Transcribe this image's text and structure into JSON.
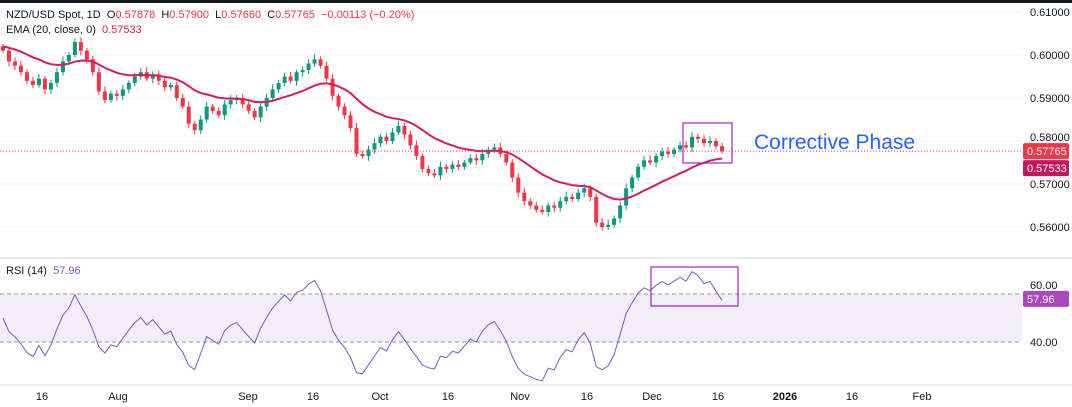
{
  "header": {
    "symbol": "NZD/USD Spot, 1D",
    "open_label": "O",
    "open": "0.57878",
    "high_label": "H",
    "high": "0.57900",
    "low_label": "L",
    "low": "0.57660",
    "close_label": "C",
    "close": "0.57765",
    "change": "−0.00113 (−0.20%)",
    "ema_label": "EMA (20, close, 0)",
    "ema_value": "0.57533",
    "rsi_label": "RSI (14)",
    "rsi_value": "57.96"
  },
  "annotation": "Corrective Phase",
  "colors": {
    "up": "#089981",
    "down": "#f23645",
    "ema": "#d81b60",
    "rsi": "#7e57c2",
    "annotation": "#2962ff",
    "box": "#9c27b0"
  },
  "chart_data": {
    "type": "candlestick",
    "title": "NZD/USD Spot, 1D",
    "price_axis": {
      "ticks": [
        "0.61000",
        "0.60000",
        "0.59000",
        "0.58000",
        "0.57000",
        "0.56000"
      ],
      "range": [
        0.5535,
        0.6125
      ]
    },
    "price_labels": {
      "last": "0.57765",
      "ema": "0.57533"
    },
    "rsi_axis": {
      "ticks": [
        "60.00",
        "40.00"
      ],
      "band": [
        40,
        60
      ],
      "label": "57.96"
    },
    "time_axis": [
      "16",
      "Aug",
      "Sep",
      "16",
      "Oct",
      "16",
      "Nov",
      "16",
      "Dec",
      "16",
      "2026",
      "16",
      "Feb"
    ],
    "ema_period": 20,
    "rsi_period": 14,
    "closes": [
      0.601,
      0.5985,
      0.5975,
      0.596,
      0.594,
      0.593,
      0.5945,
      0.592,
      0.5935,
      0.596,
      0.5985,
      0.6,
      0.603,
      0.601,
      0.599,
      0.596,
      0.5915,
      0.5895,
      0.591,
      0.5905,
      0.592,
      0.5935,
      0.595,
      0.596,
      0.5945,
      0.5955,
      0.594,
      0.5925,
      0.593,
      0.59,
      0.588,
      0.584,
      0.5825,
      0.585,
      0.588,
      0.587,
      0.586,
      0.5885,
      0.5895,
      0.59,
      0.5885,
      0.587,
      0.5855,
      0.588,
      0.59,
      0.592,
      0.5935,
      0.595,
      0.594,
      0.596,
      0.5965,
      0.598,
      0.599,
      0.5975,
      0.5945,
      0.5905,
      0.588,
      0.586,
      0.583,
      0.577,
      0.5765,
      0.578,
      0.5795,
      0.581,
      0.58,
      0.582,
      0.5835,
      0.5815,
      0.579,
      0.5765,
      0.5735,
      0.5725,
      0.572,
      0.574,
      0.5735,
      0.5745,
      0.574,
      0.575,
      0.576,
      0.5755,
      0.577,
      0.578,
      0.5785,
      0.577,
      0.575,
      0.5715,
      0.568,
      0.566,
      0.565,
      0.564,
      0.5635,
      0.565,
      0.5645,
      0.566,
      0.567,
      0.5665,
      0.568,
      0.569,
      0.567,
      0.561,
      0.56,
      0.5605,
      0.562,
      0.565,
      0.569,
      0.5715,
      0.574,
      0.5755,
      0.575,
      0.5765,
      0.5775,
      0.577,
      0.578,
      0.579,
      0.5785,
      0.581,
      0.5805,
      0.5795,
      0.58,
      0.57878,
      0.57765
    ]
  }
}
